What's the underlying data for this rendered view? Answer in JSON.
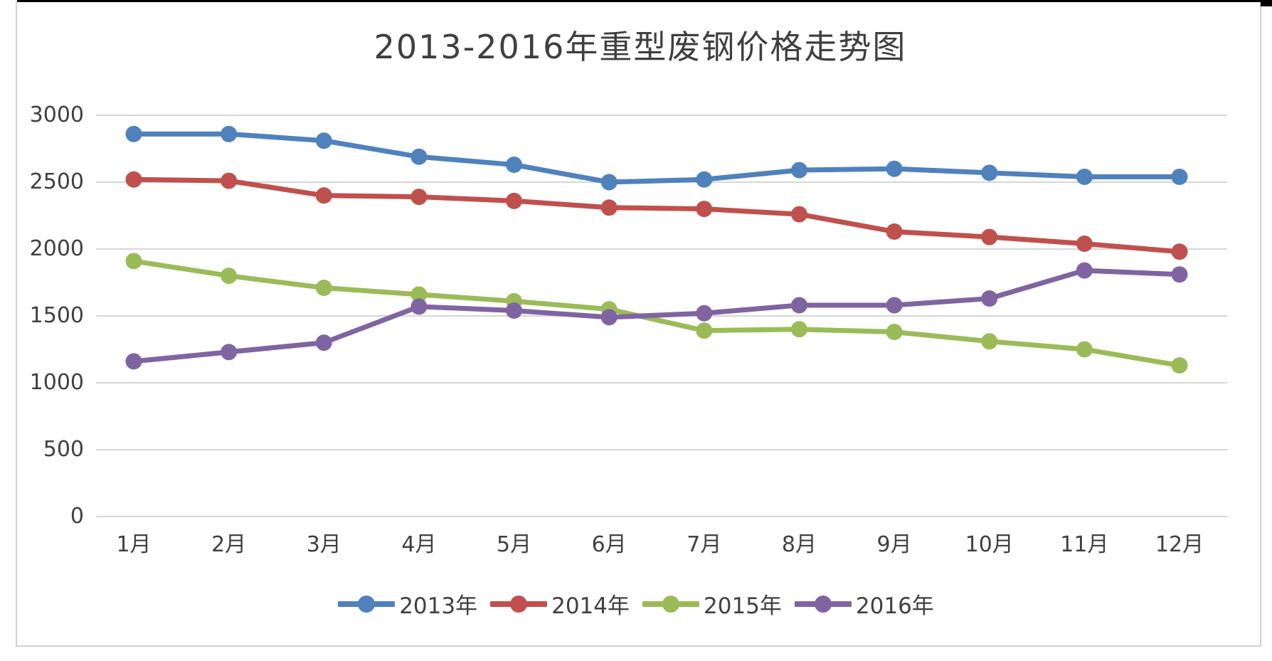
{
  "page": {
    "title": "2013-2016年重型废钢价格走势图"
  },
  "chart_data": {
    "type": "line",
    "title": "2013-2016年重型废钢价格走势图",
    "categories": [
      "1月",
      "2月",
      "3月",
      "4月",
      "5月",
      "6月",
      "7月",
      "8月",
      "9月",
      "10月",
      "11月",
      "12月"
    ],
    "series": [
      {
        "name": "2013年",
        "color": "#4F81BD",
        "values": [
          2860,
          2860,
          2810,
          2690,
          2630,
          2500,
          2520,
          2590,
          2600,
          2570,
          2540,
          2540
        ]
      },
      {
        "name": "2014年",
        "color": "#C0504D",
        "values": [
          2520,
          2510,
          2400,
          2390,
          2360,
          2310,
          2300,
          2260,
          2130,
          2090,
          2040,
          1980
        ]
      },
      {
        "name": "2015年",
        "color": "#9BBB59",
        "values": [
          1910,
          1800,
          1710,
          1660,
          1610,
          1550,
          1390,
          1400,
          1380,
          1310,
          1250,
          1130
        ]
      },
      {
        "name": "2016年",
        "color": "#8064A2",
        "values": [
          1160,
          1230,
          1300,
          1570,
          1540,
          1490,
          1520,
          1580,
          1580,
          1630,
          1840,
          1810
        ]
      }
    ],
    "y_axis": {
      "min": 0,
      "max": 3000,
      "step": 500,
      "ticks": [
        3000,
        2500,
        2000,
        1500,
        1000,
        500,
        0
      ],
      "tick_labels": [
        "3000",
        "2500",
        "2000",
        "1500",
        "1000",
        "500",
        "0"
      ]
    },
    "x_axis": {
      "label": ""
    },
    "legend_position": "bottom",
    "grid": true,
    "colors": {
      "gridline": "#D6D6D6",
      "text": "#404040",
      "chart_border": "#D0D0D0",
      "top_border": "#000000",
      "background": "#FFFFFF"
    }
  }
}
